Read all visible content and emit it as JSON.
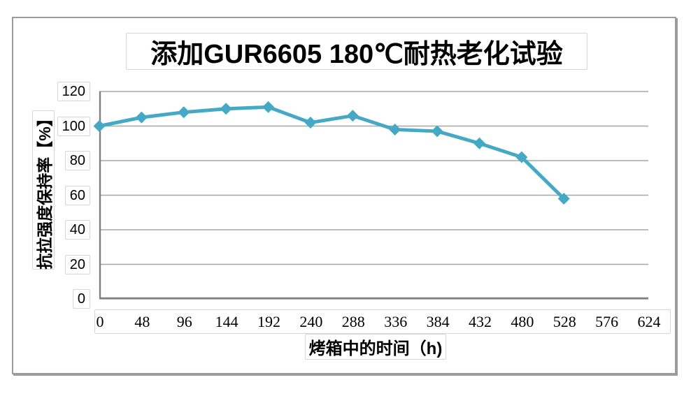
{
  "chart_data": {
    "type": "line",
    "title": "添加GUR6605 180℃耐热老化试验",
    "xlabel": "烤箱中的时间（h)",
    "ylabel": "抗拉强度保持率【%】",
    "categories": [
      0,
      48,
      96,
      144,
      192,
      240,
      288,
      336,
      384,
      432,
      480,
      528,
      576,
      624
    ],
    "values": [
      100,
      105,
      108,
      110,
      111,
      102,
      106,
      98,
      97,
      90,
      82,
      58
    ],
    "ylim": [
      0,
      120
    ],
    "yticks": [
      0,
      20,
      40,
      60,
      80,
      100,
      120
    ],
    "grid": true,
    "legend": "none",
    "marker": "diamond",
    "colors": {
      "line": "#45a9c5",
      "marker": "#45a9c5",
      "gridline": "#a6a6a6",
      "axis": "#808080"
    }
  }
}
